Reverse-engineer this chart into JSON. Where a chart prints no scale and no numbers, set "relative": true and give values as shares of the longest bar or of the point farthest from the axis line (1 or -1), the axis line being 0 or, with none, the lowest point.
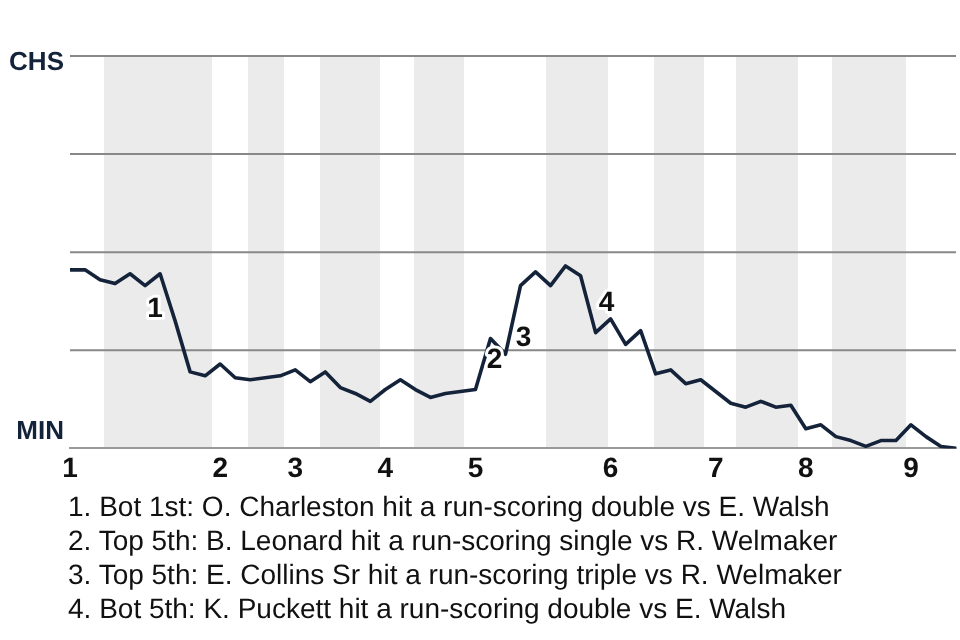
{
  "chart_data": {
    "type": "line",
    "relative": true,
    "categories": [
      "1",
      null,
      null,
      null,
      null,
      null,
      null,
      null,
      null,
      null,
      "2",
      null,
      null,
      null,
      null,
      "3",
      null,
      null,
      null,
      null,
      null,
      "4",
      null,
      null,
      null,
      null,
      null,
      "5",
      null,
      null,
      null,
      null,
      null,
      null,
      null,
      null,
      "6",
      null,
      null,
      null,
      null,
      null,
      null,
      "7",
      null,
      null,
      null,
      null,
      null,
      "8",
      null,
      null,
      null,
      null,
      null,
      null,
      "9",
      null,
      null,
      null
    ],
    "series": [
      {
        "color": "#14233a",
        "values": [
          -0.09,
          -0.09,
          -0.14,
          -0.16,
          -0.11,
          -0.17,
          -0.11,
          -0.35,
          -0.61,
          -0.63,
          -0.57,
          -0.64,
          -0.65,
          -0.64,
          -0.63,
          -0.6,
          -0.66,
          -0.61,
          -0.69,
          -0.72,
          -0.76,
          -0.7,
          -0.65,
          -0.7,
          -0.74,
          -0.72,
          -0.71,
          -0.7,
          -0.44,
          -0.52,
          -0.17,
          -0.1,
          -0.17,
          -0.07,
          -0.12,
          -0.41,
          -0.34,
          -0.47,
          -0.4,
          -0.62,
          -0.6,
          -0.67,
          -0.65,
          -0.71,
          -0.77,
          -0.79,
          -0.76,
          -0.79,
          -0.78,
          -0.9,
          -0.88,
          -0.94,
          -0.96,
          -0.99,
          -0.96,
          -0.96,
          -0.88,
          -0.94,
          -0.99,
          -1
        ]
      }
    ],
    "legend": false,
    "marker": "none",
    "line_style": "solid",
    "tick_labels": "x",
    "ref_lines": [
      {
        "axis": "y",
        "value": 1,
        "color": "#888888"
      },
      {
        "axis": "y",
        "value": 0.5,
        "color": "#888888"
      },
      {
        "axis": "y",
        "value": 0,
        "color": "#888888"
      },
      {
        "axis": "y",
        "value": -0.5,
        "color": "#888888"
      }
    ],
    "annotations": [
      "CHS",
      "MIN",
      "1",
      "2",
      "3",
      "4",
      "1. Bot 1st: O. Charleston hit a run-scoring double vs E. Walsh",
      "2. Top 5th: B. Leonard hit a run-scoring single vs R. Welmaker",
      "3. Top 5th: E. Collins Sr hit a run-scoring triple vs R. Welmaker",
      "4. Bot 5th: K. Puckett hit a run-scoring double vs E. Walsh"
    ]
  }
}
